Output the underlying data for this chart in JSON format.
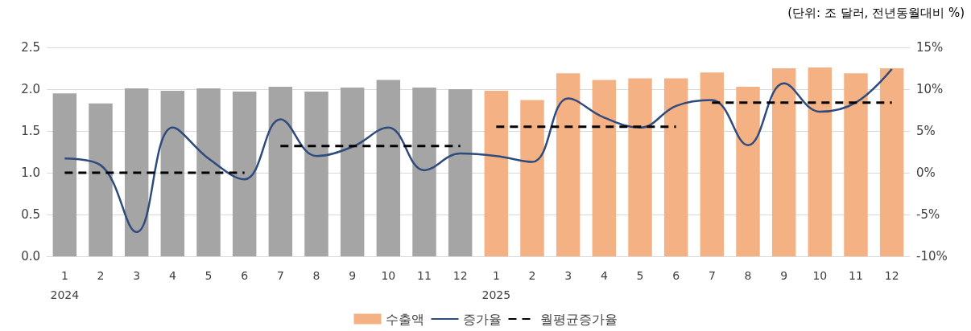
{
  "chart_data": {
    "type": "bar",
    "annotations": [
      "(단위: 조 달러, 전년동월대비 %)"
    ],
    "categories": [
      "1\n2024",
      "2",
      "3",
      "4",
      "5",
      "6",
      "7",
      "8",
      "9",
      "10",
      "11",
      "12",
      "1\n2025",
      "2",
      "3",
      "4",
      "5",
      "6",
      "7",
      "8",
      "9",
      "10",
      "11",
      "12"
    ],
    "series": [
      {
        "name": "수출액",
        "color": "#f4b183",
        "colors": [
          "#a5a5a5",
          "#a5a5a5",
          "#a5a5a5",
          "#a5a5a5",
          "#a5a5a5",
          "#a5a5a5",
          "#a5a5a5",
          "#a5a5a5",
          "#a5a5a5",
          "#a5a5a5",
          "#a5a5a5",
          "#a5a5a5",
          "#f4b183",
          "#f4b183",
          "#f4b183",
          "#f4b183",
          "#f4b183",
          "#f4b183",
          "#f4b183",
          "#f4b183",
          "#f4b183",
          "#f4b183",
          "#f4b183",
          "#f4b183"
        ],
        "values": [
          1.95,
          1.83,
          2.01,
          1.98,
          2.01,
          1.97,
          2.03,
          1.97,
          2.02,
          2.11,
          2.02,
          2.0,
          1.98,
          1.87,
          2.19,
          2.11,
          2.13,
          2.13,
          2.2,
          2.03,
          2.25,
          2.26,
          2.19,
          2.25
        ]
      },
      {
        "name": "증가율",
        "type": "line",
        "axis": "y2",
        "color": "#2f4a7c",
        "line_style": "solid",
        "values": [
          1.7,
          0.9,
          -7.1,
          5.4,
          1.7,
          -0.8,
          6.4,
          2.0,
          3.1,
          5.4,
          0.3,
          2.3,
          2.0,
          1.3,
          8.9,
          6.6,
          5.4,
          8.0,
          8.7,
          3.3,
          10.7,
          7.3,
          8.4,
          12.4
        ]
      },
      {
        "name": "월평균증가율",
        "type": "line",
        "axis": "y2",
        "color": "#000000",
        "line_style": "dashed",
        "values": [
          0,
          0,
          0,
          0,
          0,
          0,
          null,
          null,
          null,
          null,
          null,
          null,
          5.5,
          5.5,
          5.5,
          5.5,
          5.5,
          5.5,
          null,
          null,
          null,
          null,
          null,
          null
        ]
      },
      {
        "type": "line",
        "axis": "y2",
        "color": "#000000",
        "line_style": "dashed",
        "values": [
          null,
          null,
          null,
          null,
          null,
          null,
          3.2,
          3.2,
          3.2,
          3.2,
          3.2,
          3.2,
          null,
          null,
          null,
          null,
          null,
          null,
          8.4,
          8.4,
          8.4,
          8.4,
          8.4,
          8.4
        ]
      }
    ],
    "ylim": [
      0,
      2.5
    ],
    "yticks": [
      {
        "value": 0,
        "label": "0.0"
      },
      {
        "value": 0.5,
        "label": "0.5"
      },
      {
        "value": 1,
        "label": "1.0"
      },
      {
        "value": 1.5,
        "label": "1.5"
      },
      {
        "value": 2,
        "label": "2.0"
      },
      {
        "value": 2.5,
        "label": "2.5"
      }
    ],
    "y2lim": [
      -10,
      15
    ],
    "y2ticks": [
      {
        "value": -10,
        "label": "-10%"
      },
      {
        "value": -5,
        "label": "-5%"
      },
      {
        "value": 0,
        "label": "0%"
      },
      {
        "value": 5,
        "label": "5%"
      },
      {
        "value": 10,
        "label": "10%"
      },
      {
        "value": 15,
        "label": "15%"
      }
    ],
    "grid": "y",
    "legend": "bottom",
    "marker": "none"
  }
}
